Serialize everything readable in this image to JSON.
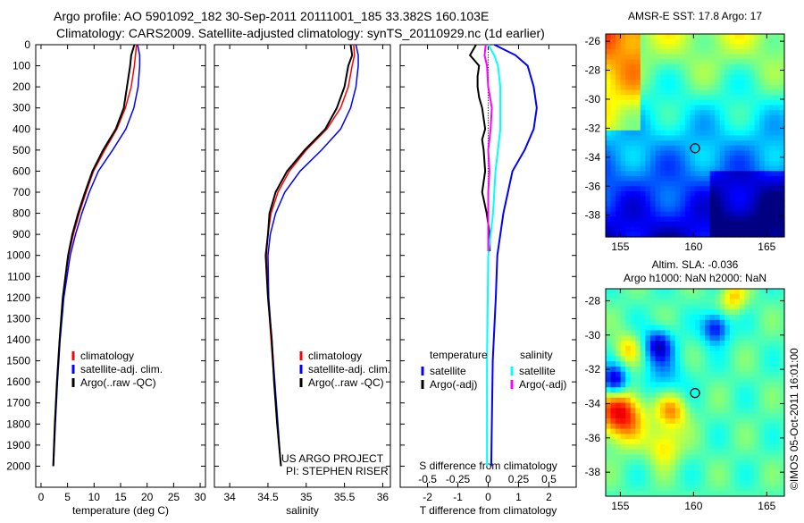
{
  "title_line1": "Argo profile: AO 5901092_182 30-Sep-2011 20111001_185 33.382S 160.103E",
  "title_line2": "Climatology: CARS2009. Satellite-adjusted climatology: synTS_20110929.nc (1d earlier)",
  "credit": "US ARGO PROJECT",
  "pi": "PI: STEPHEN RISER",
  "timestamp": "©IMOS 05-Oct-2011 16:01:00",
  "colors": {
    "climatology": "#ff0000",
    "satellite": "#0000ff",
    "argo": "#000000",
    "sal_sat": "#00ffff",
    "sal_argo": "#ff00ff"
  },
  "chart_data": [
    {
      "type": "line",
      "xlabel": "temperature (deg C)",
      "xlim": [
        -1,
        31
      ],
      "ylim": [
        0,
        2100
      ],
      "xticks": [
        0,
        5,
        10,
        15,
        20,
        25,
        30
      ],
      "yticks": [
        0,
        100,
        200,
        300,
        400,
        500,
        600,
        700,
        800,
        900,
        1000,
        1100,
        1200,
        1300,
        1400,
        1500,
        1600,
        1700,
        1800,
        1900,
        2000
      ],
      "legend": [
        "climatology",
        "satellite-adj. clim.",
        "Argo(..raw -QC)"
      ],
      "depth": [
        0,
        50,
        100,
        200,
        300,
        400,
        500,
        600,
        700,
        800,
        900,
        1000,
        1200,
        1400,
        1600,
        1800,
        2000
      ],
      "series": [
        {
          "name": "climatology",
          "values": [
            18,
            17.8,
            17.6,
            17,
            15.9,
            14.3,
            12,
            9.9,
            8.5,
            7.2,
            6.1,
            5.2,
            4.1,
            3.5,
            3.0,
            2.6,
            2.3
          ]
        },
        {
          "name": "satellite-adj. clim.",
          "values": [
            18.2,
            18.6,
            18.6,
            18.3,
            17.5,
            16,
            13.5,
            10.8,
            9.1,
            7.7,
            6.5,
            5.5,
            4.3,
            3.6,
            3.1,
            2.7,
            2.35
          ]
        },
        {
          "name": "Argo(..raw -QC)",
          "values": [
            17.6,
            17,
            16.8,
            16.2,
            15.6,
            14.1,
            11.7,
            9.7,
            8.3,
            7.0,
            5.9,
            5.1,
            4.1,
            3.5,
            3.0,
            2.6,
            2.3
          ]
        }
      ]
    },
    {
      "type": "line",
      "xlabel": "salinity",
      "xlim": [
        33.8,
        36.1
      ],
      "ylim": [
        0,
        2100
      ],
      "xticks": [
        34,
        34.5,
        35,
        35.5,
        36
      ],
      "legend": [
        "climatology",
        "satellite-adj. clim.",
        "Argo(..raw -QC)"
      ],
      "depth": [
        0,
        50,
        100,
        200,
        300,
        400,
        500,
        600,
        700,
        800,
        900,
        1000,
        1200,
        1400,
        1600,
        1800,
        2000
      ],
      "series": [
        {
          "name": "climatology",
          "values": [
            35.62,
            35.63,
            35.6,
            35.55,
            35.45,
            35.27,
            35.0,
            34.78,
            34.63,
            34.54,
            34.5,
            34.48,
            34.5,
            34.54,
            34.58,
            34.62,
            34.67
          ]
        },
        {
          "name": "satellite-adj. clim.",
          "values": [
            35.65,
            35.68,
            35.68,
            35.65,
            35.58,
            35.45,
            35.2,
            34.92,
            34.72,
            34.6,
            34.53,
            34.5,
            34.51,
            34.55,
            34.59,
            34.63,
            34.67
          ]
        },
        {
          "name": "Argo(..raw -QC)",
          "values": [
            35.58,
            35.6,
            35.55,
            35.5,
            35.4,
            35.25,
            34.98,
            34.75,
            34.6,
            34.52,
            34.5,
            34.47,
            34.5,
            34.55,
            34.58,
            34.62,
            34.67
          ]
        }
      ]
    },
    {
      "type": "line",
      "xlabel": "T difference from climatology",
      "xlabel2": "S difference from climatology",
      "xlim": [
        -2.9,
        2.9
      ],
      "ylim": [
        0,
        2100
      ],
      "xticks": [
        -2,
        -1,
        0,
        1,
        2
      ],
      "xticks_s": [
        "-0.5",
        "-0.25",
        "0",
        "0.25",
        "0.5"
      ],
      "legend_headers": [
        "temperature",
        "salinity"
      ],
      "legend": [
        "satellite",
        "Argo(-adj)",
        "satellite",
        "Argo(-adj)"
      ],
      "series": [
        {
          "name": "T satellite",
          "depth": [
            0,
            50,
            100,
            200,
            300,
            400,
            500,
            600,
            700,
            800,
            1000,
            1200,
            1500,
            2000
          ],
          "values": [
            0.2,
            0.9,
            1.3,
            1.5,
            1.6,
            1.5,
            1.2,
            0.8,
            0.65,
            0.5,
            0.3,
            0.25,
            0.15,
            0.1
          ]
        },
        {
          "name": "T Argo(-adj)",
          "depth": [
            0,
            50,
            100,
            150,
            200,
            250,
            300,
            350,
            400,
            450,
            500,
            600,
            700,
            800,
            900,
            980
          ],
          "values": [
            -0.4,
            -0.6,
            -0.3,
            -0.35,
            -0.35,
            -0.3,
            -0.2,
            -0.15,
            -0.1,
            -0.2,
            -0.15,
            -0.1,
            -0.2,
            -0.05,
            0.05,
            0.05
          ]
        },
        {
          "name": "S satellite",
          "depth": [
            0,
            50,
            100,
            200,
            300,
            400,
            500,
            600,
            800,
            1000,
            1500,
            2000
          ],
          "values": [
            0.0,
            0.05,
            0.08,
            0.1,
            0.1,
            0.1,
            0.08,
            0.06,
            0.04,
            0.0,
            -0.01,
            -0.01
          ]
        },
        {
          "name": "S Argo(-adj)",
          "depth": [
            0,
            50,
            100,
            200,
            300,
            400,
            500,
            600,
            700,
            800,
            900,
            980
          ],
          "values": [
            -0.02,
            -0.03,
            -0.01,
            0.0,
            0.03,
            0.02,
            0.0,
            0.01,
            0.0,
            0.0,
            0.0,
            0.0
          ]
        }
      ]
    },
    {
      "type": "heatmap",
      "title": "AMSR-E SST: 17.8 Argo: 17",
      "xticks": [
        155,
        160,
        165
      ],
      "yticks": [
        -26,
        -28,
        -30,
        -32,
        -34,
        -36,
        -38
      ],
      "xlim": [
        154,
        166.2
      ],
      "ylim": [
        -39.5,
        -25.5
      ],
      "marker": [
        160.103,
        -33.382
      ]
    },
    {
      "type": "heatmap",
      "title": "Altim. SLA: -0.036",
      "subtitle": "Argo h1000: NaN h2000: NaN",
      "xticks": [
        155,
        160,
        165
      ],
      "yticks": [
        -28,
        -30,
        -32,
        -34,
        -36,
        -38
      ],
      "xlim": [
        154,
        166.2
      ],
      "ylim": [
        -39.4,
        -27.3
      ],
      "marker": [
        160.103,
        -33.382
      ]
    }
  ]
}
